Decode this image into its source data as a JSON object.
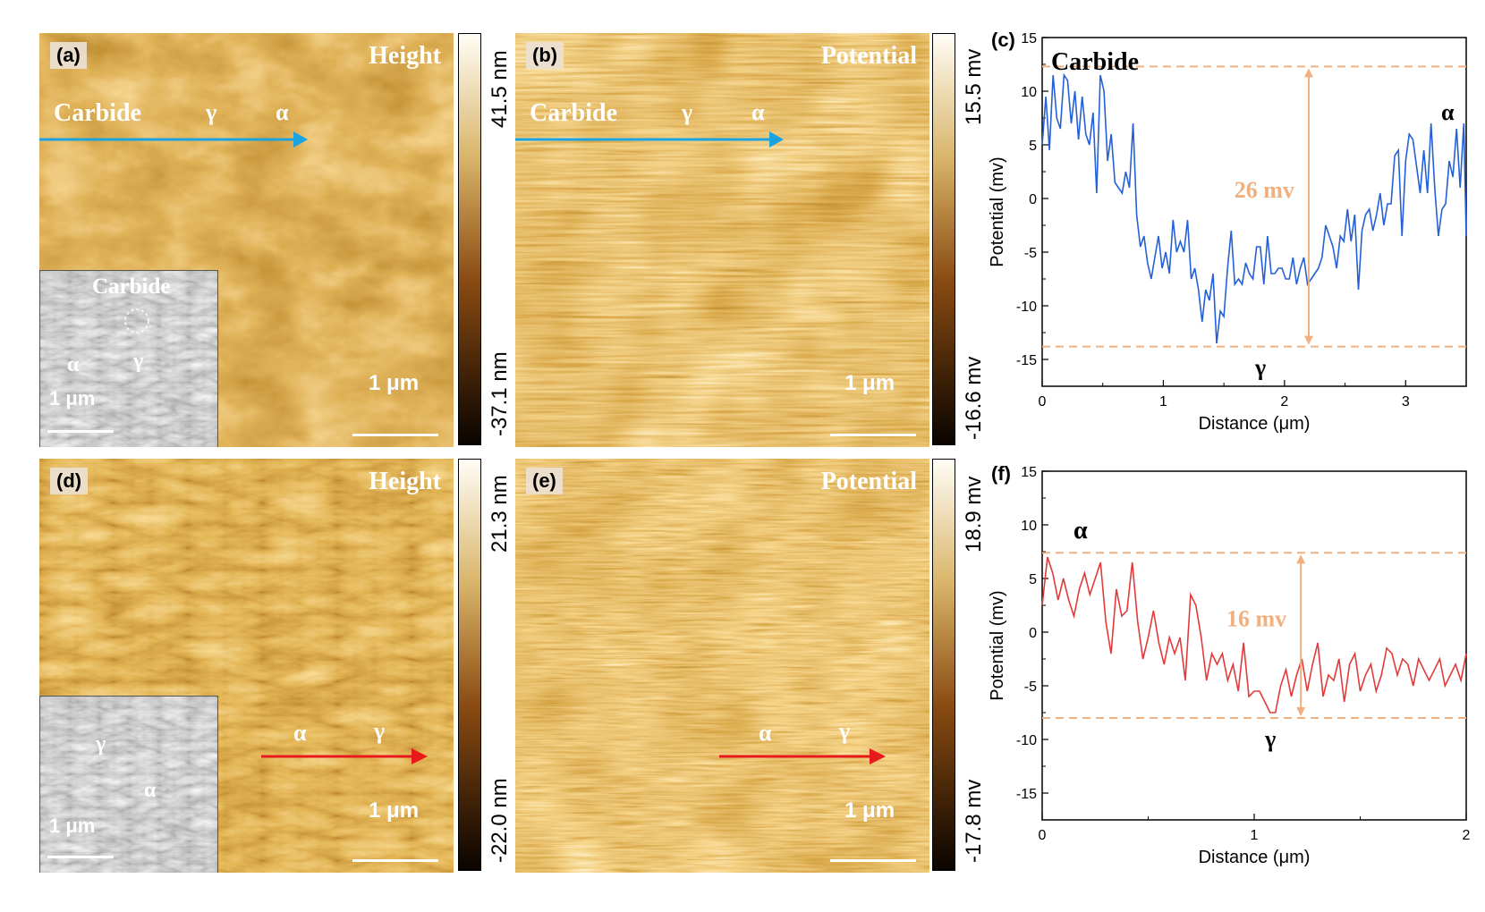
{
  "panels": {
    "a": {
      "label": "(a)",
      "title": "Height",
      "scale": "1 μm",
      "line_labels": [
        "Carbide",
        "γ",
        "α"
      ],
      "inset": {
        "title": "Carbide",
        "labels": [
          "α",
          "γ"
        ],
        "scale": "1 μm"
      },
      "colorbar": {
        "max": "41.5 nm",
        "min": "-37.1 nm"
      }
    },
    "b": {
      "label": "(b)",
      "title": "Potential",
      "scale": "1 μm",
      "line_labels": [
        "Carbide",
        "γ",
        "α"
      ],
      "colorbar": {
        "max": "15.5 mv",
        "min": "-16.6 mv"
      }
    },
    "d": {
      "label": "(d)",
      "title": "Height",
      "scale": "1 μm",
      "line_labels": [
        "α",
        "γ"
      ],
      "inset": {
        "labels": [
          "γ",
          "α"
        ],
        "scale": "1 μm"
      },
      "colorbar": {
        "max": "21.3 nm",
        "min": "-22.0 nm"
      }
    },
    "e": {
      "label": "(e)",
      "title": "Potential",
      "scale": "1 μm",
      "line_labels": [
        "α",
        "γ"
      ],
      "colorbar": {
        "max": "18.9 mv",
        "min": "-17.8 mv"
      }
    }
  },
  "colors": {
    "blue_arrow": "#1aa3e0",
    "red_arrow": "#e8191b",
    "afm_dark": "#3a1a00",
    "afm_light": "#f8e8b0",
    "annotation": "#f0b080",
    "blue_line": "#2460d8",
    "red_line": "#e23a3a"
  },
  "chart_data": [
    {
      "type": "line",
      "panel_label": "(c)",
      "xlabel": "Distance (μm)",
      "ylabel": "Potential (mv)",
      "xlim": [
        0,
        3.5
      ],
      "ylim": [
        -17.5,
        15
      ],
      "xticks": [
        0,
        1,
        2,
        3
      ],
      "yticks": [
        15,
        10,
        5,
        0,
        -5,
        -10,
        -15
      ],
      "annotations": {
        "top_left": "Carbide",
        "right": "α",
        "bottom": "γ",
        "difference": "26 mv",
        "upper_level": 12.3,
        "lower_level": -13.8
      },
      "series": [
        {
          "x": [
            0,
            0.03,
            0.06,
            0.09,
            0.12,
            0.15,
            0.18,
            0.21,
            0.24,
            0.27,
            0.3,
            0.33,
            0.36,
            0.39,
            0.42,
            0.45,
            0.48,
            0.51,
            0.54,
            0.57,
            0.6,
            0.63,
            0.66,
            0.69,
            0.72,
            0.75,
            0.78,
            0.81,
            0.84,
            0.87,
            0.9,
            0.93,
            0.96,
            0.99,
            1.02,
            1.05,
            1.08,
            1.11,
            1.14,
            1.17,
            1.2,
            1.23,
            1.26,
            1.29,
            1.32,
            1.35,
            1.38,
            1.41,
            1.44,
            1.47,
            1.5,
            1.53,
            1.56,
            1.59,
            1.62,
            1.65,
            1.68,
            1.71,
            1.74,
            1.77,
            1.8,
            1.83,
            1.86,
            1.89,
            1.92,
            1.95,
            1.98,
            2.01,
            2.04,
            2.07,
            2.1,
            2.13,
            2.16,
            2.19,
            2.22,
            2.25,
            2.28,
            2.31,
            2.34,
            2.37,
            2.4,
            2.43,
            2.46,
            2.49,
            2.52,
            2.55,
            2.58,
            2.61,
            2.64,
            2.67,
            2.7,
            2.73,
            2.76,
            2.79,
            2.82,
            2.85,
            2.88,
            2.91,
            2.94,
            2.97,
            3.0,
            3.03,
            3.06,
            3.09,
            3.12,
            3.15,
            3.18,
            3.21,
            3.24,
            3.27,
            3.3,
            3.33,
            3.36,
            3.39,
            3.42,
            3.45,
            3.48,
            3.5
          ],
          "y": [
            5,
            9.5,
            4.5,
            11.5,
            7.5,
            6.5,
            11.5,
            11,
            7,
            10,
            5.5,
            9.5,
            6,
            5,
            8,
            0.5,
            11.5,
            10,
            3.5,
            6,
            1.5,
            1,
            0.5,
            2.5,
            1,
            7,
            -1.5,
            -4.5,
            -3.5,
            -6,
            -7.5,
            -5.5,
            -3.5,
            -6.5,
            -5,
            -7,
            -2,
            -5,
            -4,
            -5,
            -2,
            -7.5,
            -6.5,
            -8.5,
            -11.5,
            -8.5,
            -9.5,
            -7,
            -13.5,
            -10.5,
            -11,
            -6.5,
            -3,
            -8,
            -7.5,
            -8,
            -6,
            -7,
            -7.5,
            -4.5,
            -4.5,
            -8,
            -3.5,
            -7,
            -7,
            -6.5,
            -6.5,
            -7.5,
            -7.5,
            -5.5,
            -8,
            -6.5,
            -5.5,
            -8,
            -7.5,
            -7,
            -6.5,
            -5.5,
            -2.5,
            -3.5,
            -4.5,
            -6.5,
            -3.5,
            -4,
            -1,
            -4,
            -1.5,
            -8.5,
            -3,
            -1.5,
            -1,
            -3,
            -1.5,
            0.5,
            -2.5,
            -0.5,
            -0.5,
            4,
            4.5,
            -3.5,
            3.5,
            6,
            5.5,
            3,
            0.5,
            4.5,
            0.5,
            7,
            1,
            -3.5,
            -1,
            -0.5,
            3.5,
            2,
            6.5,
            1,
            7,
            -3.5
          ]
        }
      ]
    },
    {
      "type": "line",
      "panel_label": "(f)",
      "xlabel": "Distance (μm)",
      "ylabel": "Potential (mv)",
      "xlim": [
        0,
        2
      ],
      "ylim": [
        -17.5,
        15
      ],
      "xticks": [
        0,
        1,
        2
      ],
      "yticks": [
        15,
        10,
        5,
        0,
        -5,
        -10,
        -15
      ],
      "annotations": {
        "top_left": "α",
        "bottom": "γ",
        "difference": "16 mv",
        "upper_level": 7.4,
        "lower_level": -8.0
      },
      "series": [
        {
          "x": [
            0,
            0.025,
            0.05,
            0.075,
            0.1,
            0.125,
            0.15,
            0.175,
            0.2,
            0.225,
            0.25,
            0.275,
            0.3,
            0.325,
            0.35,
            0.375,
            0.4,
            0.425,
            0.45,
            0.475,
            0.5,
            0.525,
            0.55,
            0.575,
            0.6,
            0.625,
            0.65,
            0.675,
            0.7,
            0.725,
            0.75,
            0.775,
            0.8,
            0.825,
            0.85,
            0.875,
            0.9,
            0.925,
            0.95,
            0.975,
            1.0,
            1.025,
            1.05,
            1.075,
            1.1,
            1.125,
            1.15,
            1.175,
            1.2,
            1.225,
            1.25,
            1.275,
            1.3,
            1.325,
            1.35,
            1.375,
            1.4,
            1.425,
            1.45,
            1.475,
            1.5,
            1.525,
            1.55,
            1.575,
            1.6,
            1.625,
            1.65,
            1.675,
            1.7,
            1.725,
            1.75,
            1.775,
            1.8,
            1.825,
            1.85,
            1.875,
            1.9,
            1.925,
            1.95,
            1.975,
            2.0
          ],
          "y": [
            2.5,
            7,
            5.5,
            3,
            5,
            3,
            1.5,
            4,
            5.5,
            3.5,
            5,
            6.5,
            1,
            -2,
            4,
            1.5,
            2,
            6.5,
            1,
            -2.5,
            -0.5,
            2,
            -1,
            -3,
            -0.5,
            -2,
            -0.5,
            -4.5,
            3.5,
            2.5,
            -0.5,
            -4.5,
            -2,
            -3,
            -2,
            -4.5,
            -3,
            -5.5,
            -1,
            -6,
            -5.5,
            -5.5,
            -6.5,
            -7.5,
            -7.5,
            -5,
            -3.5,
            -6,
            -4,
            -2.5,
            -5.5,
            -3,
            -1,
            -6,
            -4,
            -4.5,
            -2.5,
            -6.5,
            -3,
            -2,
            -5.5,
            -4,
            -3,
            -5.5,
            -4,
            -1.5,
            -2,
            -4,
            -2.5,
            -3,
            -5,
            -2.5,
            -3.5,
            -4.5,
            -3.5,
            -2.5,
            -5,
            -4,
            -3,
            -4.5,
            -2
          ]
        }
      ]
    }
  ]
}
